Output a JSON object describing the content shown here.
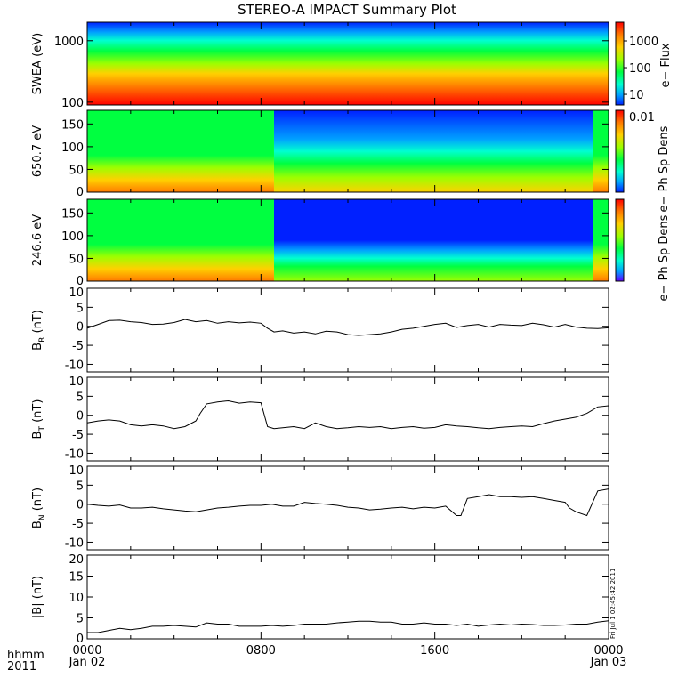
{
  "title": "STEREO-A IMPACT Summary Plot",
  "stamp": "Fri Jul 1 02:45:42 2011",
  "time_axis": {
    "row1_label": "hhmm",
    "row2_label": "2011",
    "ticks": [
      {
        "hours": 0,
        "top": "0000",
        "bottom": "Jan 02"
      },
      {
        "hours": 8,
        "top": "0800",
        "bottom": ""
      },
      {
        "hours": 16,
        "top": "1600",
        "bottom": ""
      },
      {
        "hours": 24,
        "top": "0000",
        "bottom": "Jan 03"
      }
    ]
  },
  "spectrogram_colors": [
    "#ff0000",
    "#ff7a00",
    "#ffd000",
    "#9cff00",
    "#00ff40",
    "#00ffd0",
    "#00a0ff",
    "#0020ff",
    "#6000ff"
  ],
  "chart_data": [
    {
      "type": "heatmap",
      "ylabel": "SWEA (eV)",
      "y_scale": "log",
      "ylim": [
        90,
        2000
      ],
      "yticks": [
        {
          "v": 100,
          "label": "100"
        },
        {
          "v": 1000,
          "label": "1000"
        }
      ],
      "colorbar": {
        "title": "e− Flux",
        "scale": "log",
        "range": [
          4,
          5000
        ],
        "ticks": [
          {
            "v": 10,
            "label": "10"
          },
          {
            "v": 100,
            "label": "100"
          },
          {
            "v": 1000,
            "label": "1000"
          }
        ]
      }
    },
    {
      "type": "heatmap",
      "ylabel": "650.7 eV",
      "ylim": [
        0,
        180
      ],
      "yticks": [
        0,
        50,
        100,
        150
      ],
      "colorbar": {
        "title": "e− Ph Sp Dens",
        "ticks": [
          {
            "label": "0.01"
          }
        ]
      }
    },
    {
      "type": "heatmap",
      "ylabel": "246.6 eV",
      "ylim": [
        0,
        180
      ],
      "yticks": [
        0,
        50,
        100,
        150
      ],
      "colorbar": {
        "title": "e− Ph Sp Dens",
        "ticks": []
      }
    },
    {
      "type": "line",
      "ylabel": "B",
      "ylabel_sub": "R",
      "yunit": " (nT)",
      "ylim": [
        -12,
        10
      ],
      "yticks": [
        -10,
        -5,
        0,
        5,
        10
      ],
      "x": [
        0,
        0.5,
        1,
        1.5,
        2,
        2.5,
        3,
        3.5,
        4,
        4.5,
        5,
        5.5,
        6,
        6.5,
        7,
        7.5,
        8,
        8.3,
        8.6,
        9,
        9.5,
        10,
        10.5,
        11,
        11.5,
        12,
        12.5,
        13,
        13.5,
        14,
        14.5,
        15,
        15.5,
        16,
        16.5,
        17,
        17.5,
        18,
        18.5,
        19,
        19.5,
        20,
        20.5,
        21,
        21.5,
        22,
        22.5,
        23,
        23.5,
        24
      ],
      "y": [
        -0.5,
        0.5,
        1.5,
        1.6,
        1.2,
        1,
        0.5,
        0.6,
        1,
        1.8,
        1.2,
        1.5,
        0.8,
        1.2,
        0.9,
        1.1,
        0.8,
        -0.5,
        -1.5,
        -1.2,
        -1.8,
        -1.5,
        -2,
        -1.3,
        -1.5,
        -2.2,
        -2.4,
        -2.2,
        -2,
        -1.5,
        -0.8,
        -0.5,
        0,
        0.5,
        0.8,
        -0.3,
        0.2,
        0.5,
        -0.2,
        0.5,
        0.3,
        0.2,
        0.8,
        0.4,
        -0.2,
        0.5,
        -0.2,
        -0.5,
        -0.6,
        -0.4
      ]
    },
    {
      "type": "line",
      "ylabel": "B",
      "ylabel_sub": "T",
      "yunit": " (nT)",
      "ylim": [
        -12,
        10
      ],
      "yticks": [
        -10,
        -5,
        0,
        5,
        10
      ],
      "x": [
        0,
        0.5,
        1,
        1.5,
        2,
        2.5,
        3,
        3.5,
        4,
        4.5,
        5,
        5.2,
        5.5,
        6,
        6.5,
        7,
        7.5,
        8,
        8.3,
        8.6,
        9,
        9.5,
        10,
        10.5,
        11,
        11.5,
        12,
        12.5,
        13,
        13.5,
        14,
        14.5,
        15,
        15.5,
        16,
        16.5,
        17,
        17.5,
        18,
        18.5,
        19,
        19.5,
        20,
        20.5,
        21,
        21.5,
        22,
        22.5,
        23,
        23.5,
        24
      ],
      "y": [
        -2,
        -1.5,
        -1.2,
        -1.5,
        -2.5,
        -2.8,
        -2.5,
        -2.8,
        -3.5,
        -3,
        -1.5,
        0.5,
        3,
        3.5,
        3.8,
        3.2,
        3.5,
        3.3,
        -3,
        -3.5,
        -3.3,
        -3,
        -3.5,
        -2,
        -3,
        -3.5,
        -3.3,
        -3,
        -3.2,
        -3,
        -3.5,
        -3.2,
        -3,
        -3.4,
        -3.2,
        -2.5,
        -2.8,
        -3,
        -3.3,
        -3.5,
        -3.2,
        -3,
        -2.8,
        -3,
        -2.2,
        -1.5,
        -1,
        -0.5,
        0.5,
        2.2,
        2.5
      ]
    },
    {
      "type": "line",
      "ylabel": "B",
      "ylabel_sub": "N",
      "yunit": " (nT)",
      "ylim": [
        -12,
        10
      ],
      "yticks": [
        -10,
        -5,
        0,
        5,
        10
      ],
      "x": [
        0,
        0.5,
        1,
        1.5,
        2,
        2.5,
        3,
        3.5,
        4,
        4.5,
        5,
        5.5,
        6,
        6.5,
        7,
        7.5,
        8,
        8.5,
        9,
        9.5,
        10,
        10.5,
        11,
        11.5,
        12,
        12.5,
        13,
        13.5,
        14,
        14.5,
        15,
        15.5,
        16,
        16.5,
        17,
        17.2,
        17.5,
        18,
        18.5,
        19,
        19.5,
        20,
        20.5,
        21,
        21.5,
        22,
        22.2,
        22.5,
        23,
        23.5,
        24
      ],
      "y": [
        0,
        -0.3,
        -0.5,
        -0.2,
        -1,
        -1,
        -0.8,
        -1.2,
        -1.5,
        -1.8,
        -2,
        -1.5,
        -1,
        -0.8,
        -0.5,
        -0.3,
        -0.3,
        0,
        -0.5,
        -0.5,
        0.5,
        0.2,
        0,
        -0.3,
        -0.8,
        -1,
        -1.5,
        -1.3,
        -1,
        -0.8,
        -1.2,
        -0.8,
        -1,
        -0.5,
        -3,
        -3,
        1.5,
        2,
        2.5,
        2,
        2,
        1.8,
        2,
        1.5,
        1,
        0.5,
        -1,
        -2,
        -3,
        3.5,
        4
      ]
    },
    {
      "type": "line",
      "ylabel": "|B|",
      "ylabel_sub": "",
      "yunit": " (nT)",
      "ylim": [
        0,
        20
      ],
      "yticks": [
        0,
        5,
        10,
        15,
        20
      ],
      "x": [
        0,
        0.5,
        1,
        1.5,
        2,
        2.5,
        3,
        3.5,
        4,
        4.5,
        5,
        5.5,
        6,
        6.5,
        7,
        7.5,
        8,
        8.5,
        9,
        9.5,
        10,
        10.5,
        11,
        11.5,
        12,
        12.5,
        13,
        13.5,
        14,
        14.5,
        15,
        15.5,
        16,
        16.5,
        17,
        17.5,
        18,
        18.5,
        19,
        19.5,
        20,
        20.5,
        21,
        21.5,
        22,
        22.5,
        23,
        23.5,
        24
      ],
      "y": [
        1.5,
        1.5,
        2,
        2.5,
        2.2,
        2.5,
        3,
        3,
        3.2,
        3,
        2.8,
        3.8,
        3.5,
        3.5,
        3,
        3,
        3,
        3.2,
        3,
        3.2,
        3.5,
        3.5,
        3.5,
        3.8,
        4,
        4.2,
        4.2,
        4,
        4,
        3.5,
        3.5,
        3.8,
        3.5,
        3.5,
        3.2,
        3.5,
        3,
        3.3,
        3.5,
        3.3,
        3.5,
        3.4,
        3.2,
        3.2,
        3.3,
        3.5,
        3.5,
        4,
        4.3
      ]
    }
  ]
}
